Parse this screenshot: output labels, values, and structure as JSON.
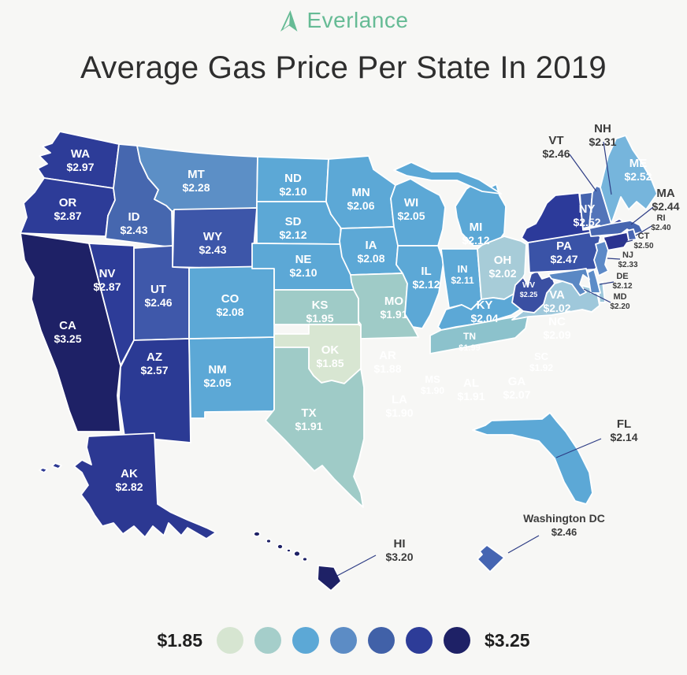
{
  "brand": {
    "name": "Everlance",
    "color": "#66BB95"
  },
  "title": "Average Gas Price Per State In 2019",
  "legend": {
    "min_label": "$1.85",
    "max_label": "$3.25",
    "colors": [
      "#D6E5D1",
      "#A5CECA",
      "#5CA8D6",
      "#5C8CC5",
      "#4161A8",
      "#2D3C98",
      "#1E2166"
    ]
  },
  "chart_data": {
    "type": "choropleth",
    "title": "Average Gas Price Per State In 2019",
    "value_format": "USD",
    "min_value": 1.85,
    "max_value": 3.25,
    "states": [
      {
        "abbr": "WA",
        "label": "WA",
        "price": 2.97,
        "price_label": "$2.97",
        "color": "#2D3C98"
      },
      {
        "abbr": "OR",
        "label": "OR",
        "price": 2.87,
        "price_label": "$2.87",
        "color": "#2D3C98"
      },
      {
        "abbr": "CA",
        "label": "CA",
        "price": 3.25,
        "price_label": "$3.25",
        "color": "#1E2166"
      },
      {
        "abbr": "NV",
        "label": "NV",
        "price": 2.87,
        "price_label": "$2.87",
        "color": "#2D3C98"
      },
      {
        "abbr": "ID",
        "label": "ID",
        "price": 2.43,
        "price_label": "$2.43",
        "color": "#4667AF"
      },
      {
        "abbr": "MT",
        "label": "MT",
        "price": 2.28,
        "price_label": "$2.28",
        "color": "#5C8FC6"
      },
      {
        "abbr": "WY",
        "label": "WY",
        "price": 2.43,
        "price_label": "$2.43",
        "color": "#3D56A9"
      },
      {
        "abbr": "UT",
        "label": "UT",
        "price": 2.46,
        "price_label": "$2.46",
        "color": "#3F58AA"
      },
      {
        "abbr": "AZ",
        "label": "AZ",
        "price": 2.57,
        "price_label": "$2.57",
        "color": "#2B3A94"
      },
      {
        "abbr": "NM",
        "label": "NM",
        "price": 2.05,
        "price_label": "$2.05",
        "color": "#5CA8D6"
      },
      {
        "abbr": "CO",
        "label": "CO",
        "price": 2.08,
        "price_label": "$2.08",
        "color": "#5CA8D6"
      },
      {
        "abbr": "ND",
        "label": "ND",
        "price": 2.1,
        "price_label": "$2.10",
        "color": "#5CA8D6"
      },
      {
        "abbr": "SD",
        "label": "SD",
        "price": 2.12,
        "price_label": "$2.12",
        "color": "#5CA8D6"
      },
      {
        "abbr": "NE",
        "label": "NE",
        "price": 2.1,
        "price_label": "$2.10",
        "color": "#5CA8D6"
      },
      {
        "abbr": "KS",
        "label": "KS",
        "price": 1.95,
        "price_label": "$1.95",
        "color": "#9FCBC7"
      },
      {
        "abbr": "OK",
        "label": "OK",
        "price": 1.85,
        "price_label": "$1.85",
        "color": "#D8E6D2"
      },
      {
        "abbr": "TX",
        "label": "TX",
        "price": 1.91,
        "price_label": "$1.91",
        "color": "#9FCBC7"
      },
      {
        "abbr": "MN",
        "label": "MN",
        "price": 2.06,
        "price_label": "$2.06",
        "color": "#5CA8D6"
      },
      {
        "abbr": "IA",
        "label": "IA",
        "price": 2.08,
        "price_label": "$2.08",
        "color": "#5CA8D6"
      },
      {
        "abbr": "MO",
        "label": "MO",
        "price": 1.91,
        "price_label": "$1.91",
        "color": "#9FCBC7"
      },
      {
        "abbr": "AR",
        "label": "AR",
        "price": 1.88,
        "price_label": "$1.88",
        "color": "#D8E6D2"
      },
      {
        "abbr": "LA",
        "label": "LA",
        "price": 1.9,
        "price_label": "$1.90",
        "color": "#9FCBC7"
      },
      {
        "abbr": "MS",
        "label": "MS",
        "price": 1.9,
        "price_label": "$1.90",
        "color": "#9FCBC7"
      },
      {
        "abbr": "AL",
        "label": "AL",
        "price": 1.91,
        "price_label": "$1.91",
        "color": "#9FCBC7"
      },
      {
        "abbr": "GA",
        "label": "GA",
        "price": 2.07,
        "price_label": "$2.07",
        "color": "#5CA8D6"
      },
      {
        "abbr": "WI",
        "label": "WI",
        "price": 2.05,
        "price_label": "$2.05",
        "color": "#5CA8D6"
      },
      {
        "abbr": "IL",
        "label": "IL",
        "price": 2.12,
        "price_label": "$2.12",
        "color": "#5CA8D6"
      },
      {
        "abbr": "IN",
        "label": "IN",
        "price": 2.11,
        "price_label": "$2.11",
        "color": "#5CA8D6"
      },
      {
        "abbr": "MI",
        "label": "MI",
        "price": 2.12,
        "price_label": "$2.12",
        "color": "#5CA8D6"
      },
      {
        "abbr": "OH",
        "label": "OH",
        "price": 2.02,
        "price_label": "$2.02",
        "color": "#A7CCD8"
      },
      {
        "abbr": "KY",
        "label": "KY",
        "price": 2.04,
        "price_label": "$2.04",
        "color": "#5CA8D6"
      },
      {
        "abbr": "TN",
        "label": "TN",
        "price": 1.99,
        "price_label": "$1.99",
        "color": "#8CC2CC"
      },
      {
        "abbr": "NC",
        "label": "NC",
        "price": 2.09,
        "price_label": "$2.09",
        "color": "#5CA8D6"
      },
      {
        "abbr": "SC",
        "label": "SC",
        "price": 1.92,
        "price_label": "$1.92",
        "color": "#A6CFCA"
      },
      {
        "abbr": "VA",
        "label": "VA",
        "price": 2.02,
        "price_label": "$2.02",
        "color": "#9FC8DB"
      },
      {
        "abbr": "WV",
        "label": "WV",
        "price": 2.25,
        "price_label": "$2.25",
        "color": "#3A4FA2"
      },
      {
        "abbr": "PA",
        "label": "PA",
        "price": 2.47,
        "price_label": "$2.47",
        "color": "#3A53A7"
      },
      {
        "abbr": "NY",
        "label": "NY",
        "price": 2.52,
        "price_label": "$2.52",
        "color": "#2C3A9A"
      },
      {
        "abbr": "VT",
        "label": "VT",
        "price": 2.46,
        "price_label": "$2.46",
        "color": "#4463AE"
      },
      {
        "abbr": "NH",
        "label": "NH",
        "price": 2.31,
        "price_label": "$2.31",
        "color": "#5274B9"
      },
      {
        "abbr": "ME",
        "label": "ME",
        "price": 2.52,
        "price_label": "$2.52",
        "color": "#76B5DC"
      },
      {
        "abbr": "MA",
        "label": "MA",
        "price": 2.44,
        "price_label": "$2.44",
        "color": "#4766B0"
      },
      {
        "abbr": "RI",
        "label": "RI",
        "price": 2.4,
        "price_label": "$2.40",
        "color": "#4966B2"
      },
      {
        "abbr": "CT",
        "label": "CT",
        "price": 2.5,
        "price_label": "$2.50",
        "color": "#2B3490"
      },
      {
        "abbr": "NJ",
        "label": "NJ",
        "price": 2.33,
        "price_label": "$2.33",
        "color": "#5C89C7"
      },
      {
        "abbr": "DE",
        "label": "DE",
        "price": 2.12,
        "price_label": "$2.12",
        "color": "#5C8CC8"
      },
      {
        "abbr": "MD",
        "label": "MD",
        "price": 2.2,
        "price_label": "$2.20",
        "color": "#5A88C4"
      },
      {
        "abbr": "FL",
        "label": "FL",
        "price": 2.14,
        "price_label": "$2.14",
        "color": "#5CA8D6"
      },
      {
        "abbr": "AK",
        "label": "AK",
        "price": 2.82,
        "price_label": "$2.82",
        "color": "#2C3892"
      },
      {
        "abbr": "HI",
        "label": "HI",
        "price": 3.2,
        "price_label": "$3.20",
        "color": "#1E2166"
      },
      {
        "abbr": "DC",
        "label": "Washington DC",
        "price": 2.46,
        "price_label": "$2.46",
        "color": "#4565B2"
      }
    ],
    "label_text_color": "#FFFFFF",
    "external_label_color": "#3C3C3C",
    "leader_line_color": "#2E3D85"
  }
}
